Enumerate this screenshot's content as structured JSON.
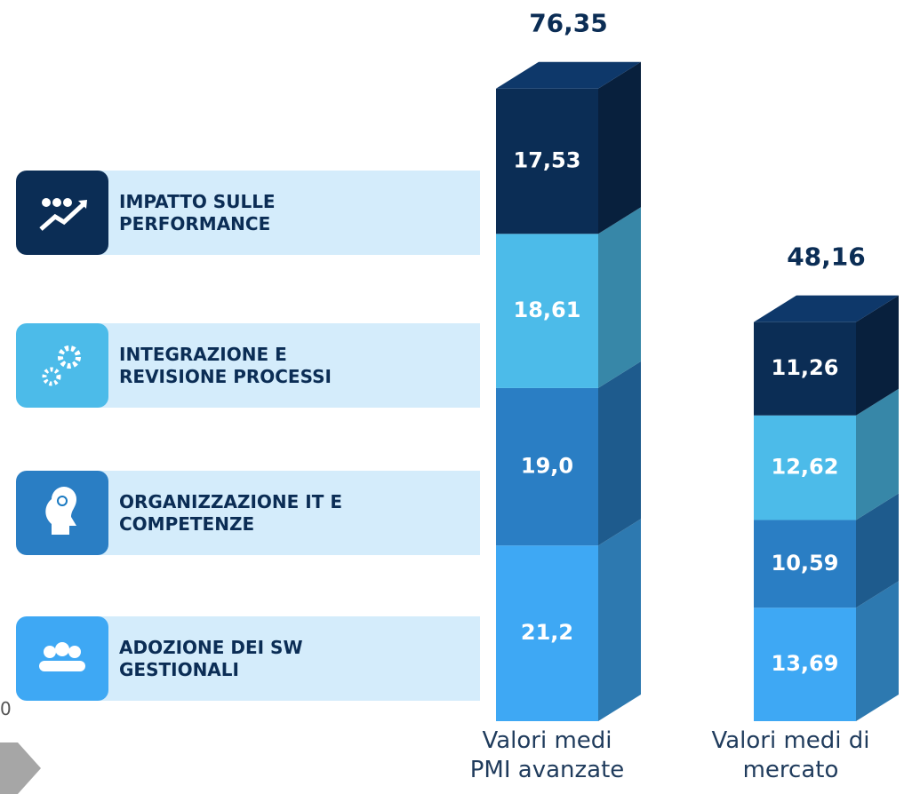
{
  "chart_data": {
    "type": "bar",
    "stacked": true,
    "categories": [
      "Valori medi\nPMI  avanzate",
      "Valori medi di\nmercato"
    ],
    "series": [
      {
        "name": "ADOZIONE DEI SW\nGESTIONALI",
        "color": "#3ea8f4",
        "values": [
          21.2,
          13.69
        ],
        "value_labels": [
          "21,2",
          "13,69"
        ]
      },
      {
        "name": "ORGANIZZAZIONE IT E\nCOMPETENZE",
        "color": "#2a7ec4",
        "values": [
          19.0,
          10.59
        ],
        "value_labels": [
          "19,0",
          "10,59"
        ]
      },
      {
        "name": "INTEGRAZIONE E\nREVISIONE PROCESSI",
        "color": "#4cbbe9",
        "values": [
          18.61,
          12.62
        ],
        "value_labels": [
          "18,61",
          "12,62"
        ]
      },
      {
        "name": "IMPATTO SULLE\nPERFORMANCE",
        "color": "#0b2d55",
        "values": [
          17.53,
          11.26
        ],
        "value_labels": [
          "17,53",
          "11,26"
        ]
      }
    ],
    "totals": [
      76.35,
      48.16
    ],
    "total_labels": [
      "76,35",
      "48,16"
    ]
  },
  "footer_text": "0"
}
